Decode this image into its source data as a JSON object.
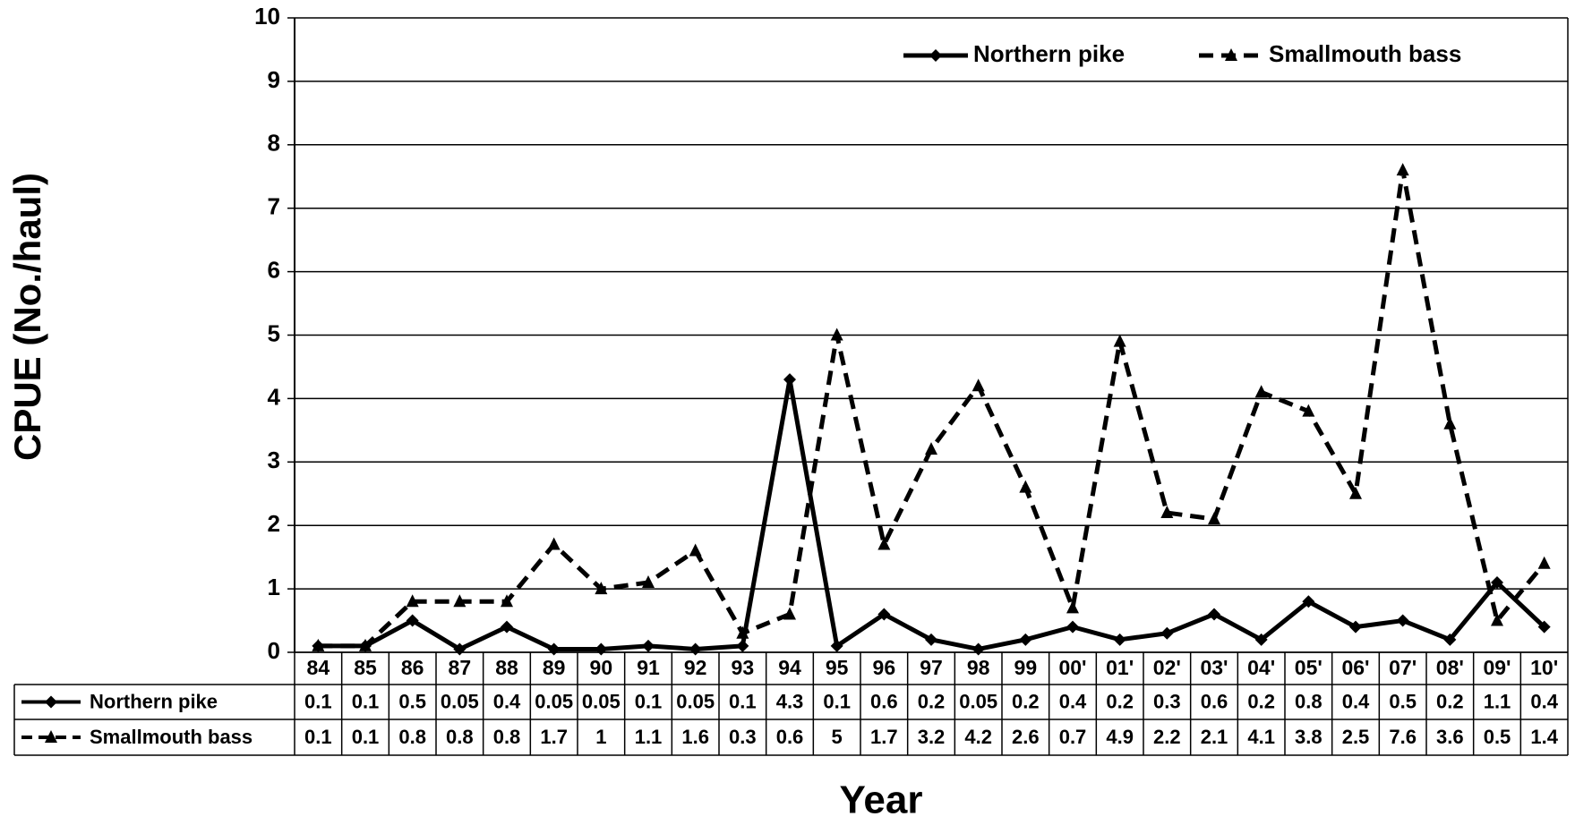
{
  "chart_data": {
    "type": "line",
    "x_label": "Year",
    "y_label": "CPUE (No./haul)",
    "categories": [
      "84",
      "85",
      "86",
      "87",
      "88",
      "89",
      "90",
      "91",
      "92",
      "93",
      "94",
      "95",
      "96",
      "97",
      "98",
      "99",
      "00'",
      "01'",
      "02'",
      "03'",
      "04'",
      "05'",
      "06'",
      "07'",
      "08'",
      "09'",
      "10'"
    ],
    "series": [
      {
        "name": "Northern pike",
        "color": "#000000",
        "dash": "solid",
        "marker": "diamond",
        "values": [
          0.1,
          0.1,
          0.5,
          0.05,
          0.4,
          0.05,
          0.05,
          0.1,
          0.05,
          0.1,
          4.3,
          0.1,
          0.6,
          0.2,
          0.05,
          0.2,
          0.4,
          0.2,
          0.3,
          0.6,
          0.2,
          0.8,
          0.4,
          0.5,
          0.2,
          1.1,
          0.4
        ]
      },
      {
        "name": "Smallmouth bass",
        "color": "#000000",
        "dash": "dashed",
        "marker": "triangle",
        "values": [
          0.1,
          0.1,
          0.8,
          0.8,
          0.8,
          1.7,
          1,
          1.1,
          1.6,
          0.3,
          0.6,
          5,
          1.7,
          3.2,
          4.2,
          2.6,
          0.7,
          4.9,
          2.2,
          2.1,
          4.1,
          3.8,
          2.5,
          7.6,
          3.6,
          0.5,
          1.4
        ]
      }
    ],
    "ylim": [
      0,
      10
    ],
    "yticks": [
      0,
      1,
      2,
      3,
      4,
      5,
      6,
      7,
      8,
      9,
      10
    ],
    "grid": true,
    "legend": "top-right",
    "data_table": true
  }
}
